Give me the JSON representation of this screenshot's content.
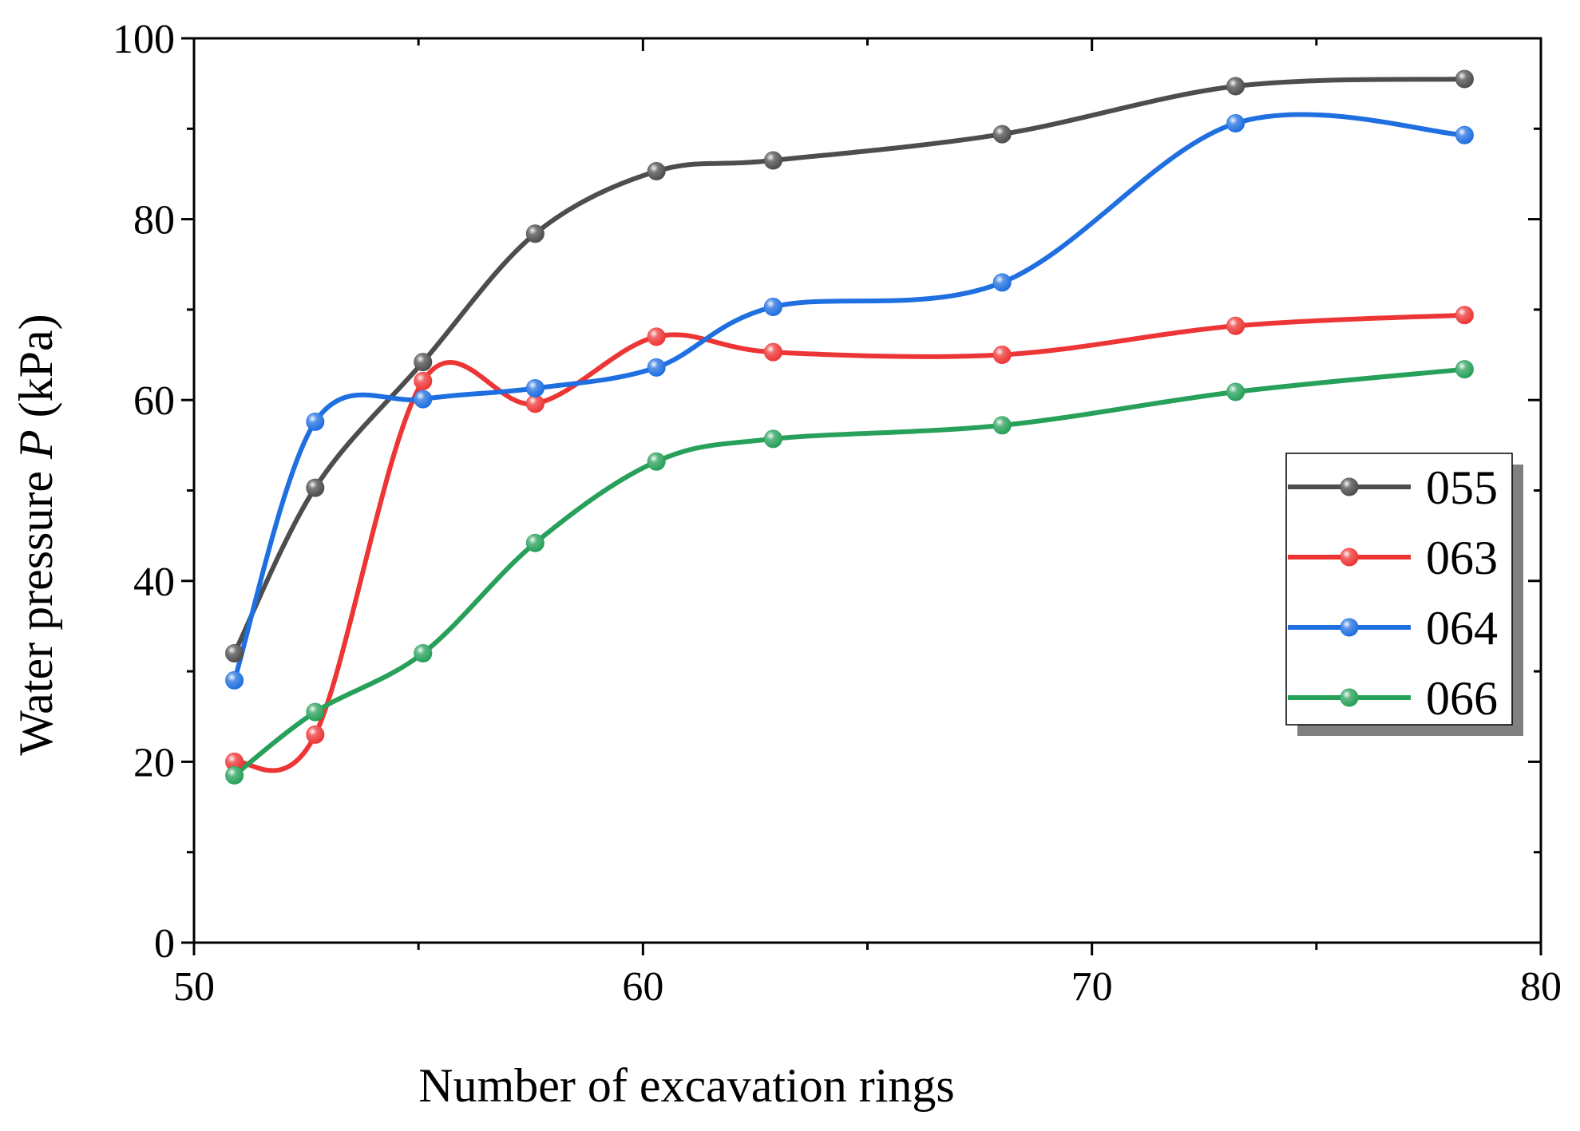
{
  "chart_data": {
    "type": "line",
    "title": "",
    "xlabel": "Number of excavation rings",
    "ylabel_prefix": "Water pressure ",
    "ylabel_symbol": "P",
    "ylabel_suffix": " (kPa)",
    "xlim": [
      50,
      80
    ],
    "ylim": [
      0,
      100
    ],
    "x_ticks": [
      50,
      60,
      70,
      80
    ],
    "y_ticks": [
      0,
      20,
      40,
      60,
      80,
      100
    ],
    "grid": false,
    "smooth": true,
    "legend_position": "right",
    "x": [
      50.9,
      52.7,
      55.1,
      57.6,
      60.3,
      62.9,
      68.0,
      73.2,
      78.3
    ],
    "series": [
      {
        "name": "055",
        "color": "#4d4d4d",
        "values": [
          32.0,
          50.3,
          64.2,
          78.4,
          85.3,
          86.5,
          89.4,
          94.7,
          95.5
        ]
      },
      {
        "name": "063",
        "color": "#ee3535",
        "values": [
          20.0,
          23.0,
          62.1,
          59.6,
          67.0,
          65.3,
          65.0,
          68.2,
          69.4
        ]
      },
      {
        "name": "064",
        "color": "#1f6fe0",
        "values": [
          29.0,
          57.6,
          60.1,
          61.3,
          63.6,
          70.3,
          73.0,
          90.6,
          89.3
        ]
      },
      {
        "name": "066",
        "color": "#27a05a",
        "values": [
          18.5,
          25.5,
          32.0,
          44.2,
          53.2,
          55.7,
          57.2,
          60.9,
          63.4
        ]
      }
    ]
  }
}
